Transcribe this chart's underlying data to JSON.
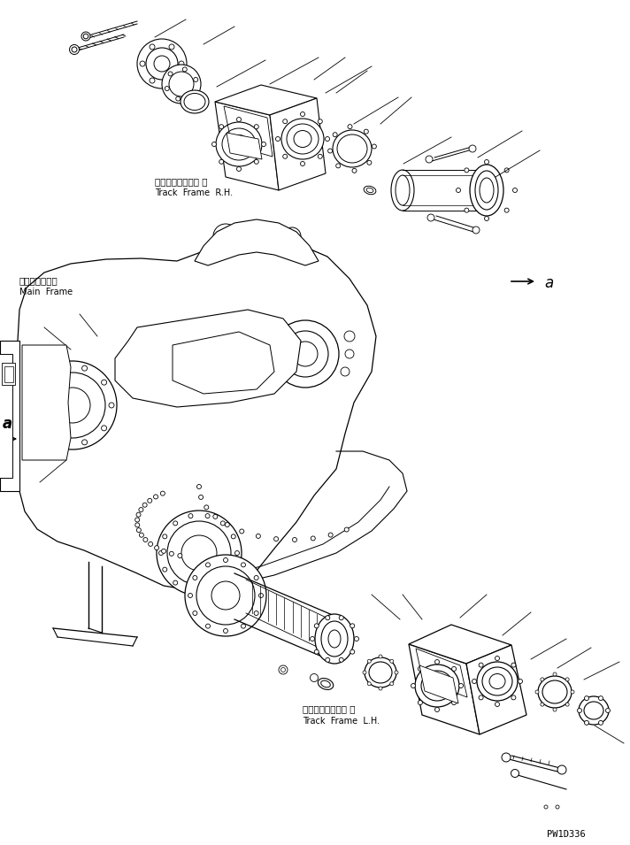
{
  "background_color": "#ffffff",
  "line_color": "#000000",
  "text_color": "#000000",
  "figure_width": 7.12,
  "figure_height": 9.55,
  "dpi": 100,
  "watermark": "PW1D336",
  "labels": {
    "track_frame_rh_jp": "トラックフレーム 右",
    "track_frame_rh_en": "Track  Frame  R.H.",
    "track_frame_lh_jp": "トラックフレーム 左",
    "track_frame_lh_en": "Track  Frame  L.H.",
    "main_frame_jp": "メインフレーム",
    "main_frame_en": "Main  Frame",
    "label_a": "a"
  }
}
